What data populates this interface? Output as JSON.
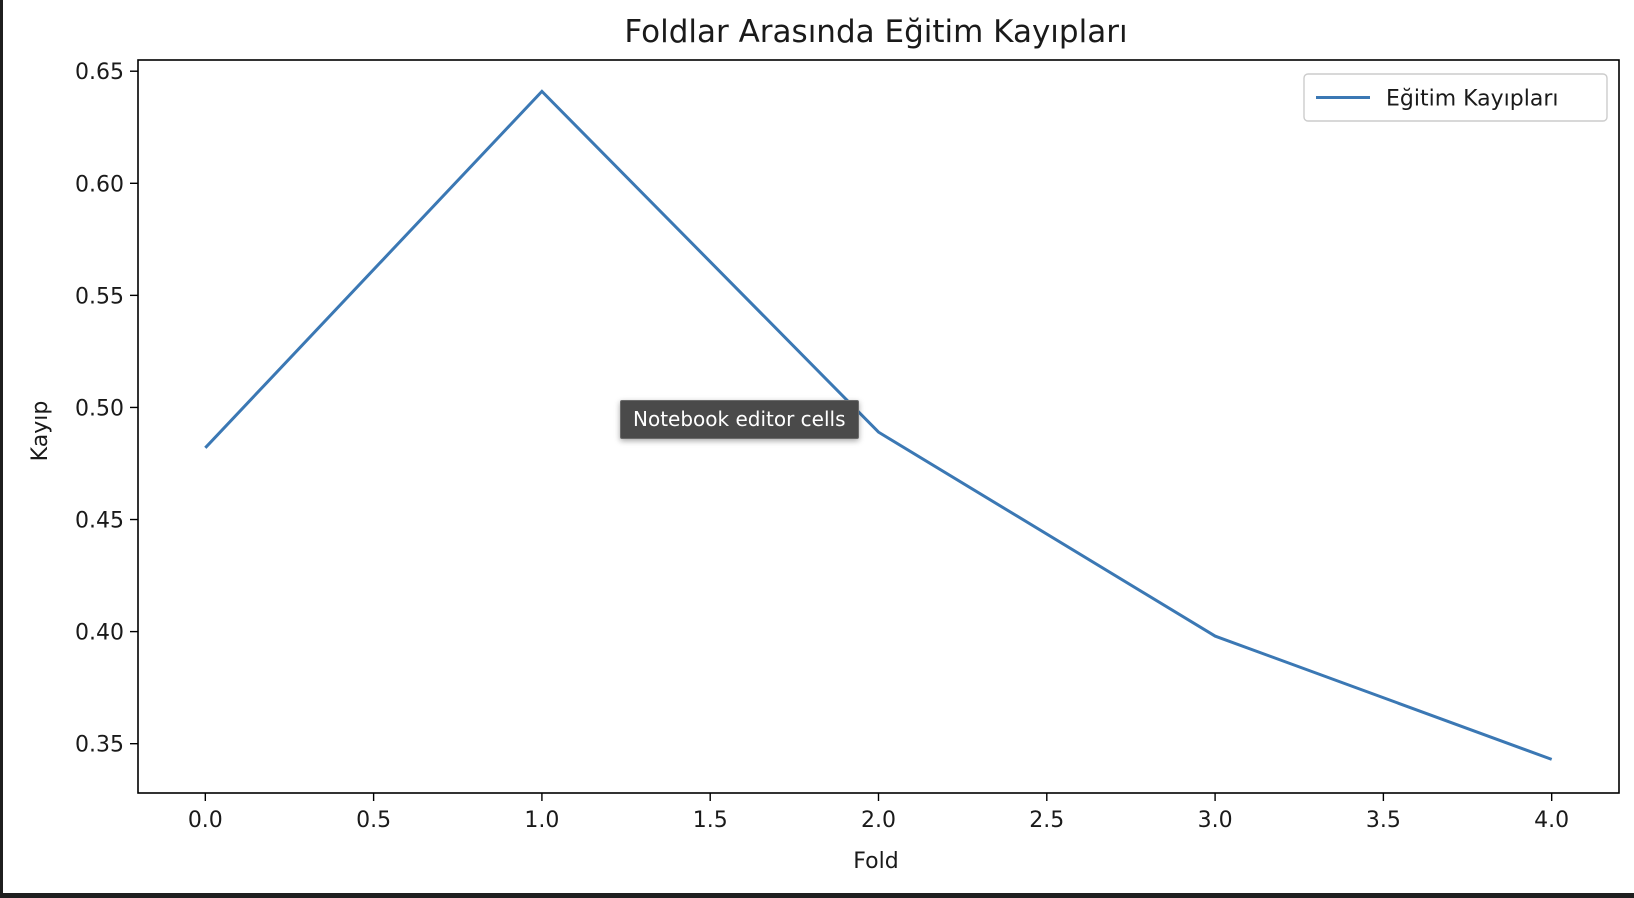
{
  "tooltip": {
    "text": "Notebook editor cells"
  },
  "colors": {
    "series": "#3b78b4",
    "tooltip_bg": "#4a4a4a"
  },
  "chart_data": {
    "type": "line",
    "title": "Foldlar Arasında Eğitim Kayıpları",
    "xlabel": "Fold",
    "ylabel": "Kayıp",
    "xlim": [
      -0.2,
      4.2
    ],
    "ylim": [
      0.328,
      0.655
    ],
    "xticks": [
      0.0,
      0.5,
      1.0,
      1.5,
      2.0,
      2.5,
      3.0,
      3.5,
      4.0
    ],
    "xtick_labels": [
      "0.0",
      "0.5",
      "1.0",
      "1.5",
      "2.0",
      "2.5",
      "3.0",
      "3.5",
      "4.0"
    ],
    "yticks": [
      0.35,
      0.4,
      0.45,
      0.5,
      0.55,
      0.6,
      0.65
    ],
    "ytick_labels": [
      "0.35",
      "0.40",
      "0.45",
      "0.50",
      "0.55",
      "0.60",
      "0.65"
    ],
    "grid": false,
    "legend_position": "top-right",
    "series": [
      {
        "name": "Eğitim Kayıpları",
        "x": [
          0,
          1,
          2,
          3,
          4
        ],
        "values": [
          0.482,
          0.641,
          0.489,
          0.398,
          0.343
        ]
      }
    ]
  }
}
